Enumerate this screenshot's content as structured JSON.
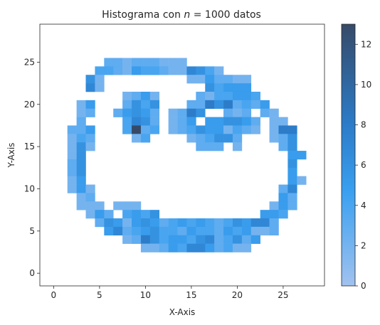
{
  "chart_data": {
    "type": "heatmap",
    "title": "Histograma con n = 1000 datos",
    "title_prefix": "Histograma con ",
    "title_var": "n",
    "title_suffix": " = 1000 datos",
    "xlabel": "X-Axis",
    "ylabel": "Y-Axis",
    "xlim": [
      -1.5,
      29.5
    ],
    "ylim": [
      -1.5,
      29.5
    ],
    "xticks": [
      0,
      5,
      10,
      15,
      20,
      25
    ],
    "yticks": [
      0,
      5,
      10,
      15,
      20,
      25
    ],
    "bin_width": 1,
    "colorbar": {
      "min": 0,
      "max": 13,
      "ticks": [
        0,
        2,
        4,
        6,
        8,
        10,
        12
      ]
    },
    "colors": {
      "low": "#a1c2ef",
      "mid": "#3aa0f0",
      "high": "#2c7bc8",
      "max": "#364a68"
    },
    "cells": [
      [
        6,
        25,
        3
      ],
      [
        7,
        25,
        3
      ],
      [
        8,
        25,
        2
      ],
      [
        9,
        25,
        3
      ],
      [
        10,
        25,
        3
      ],
      [
        11,
        25,
        3
      ],
      [
        12,
        25,
        2
      ],
      [
        13,
        25,
        2
      ],
      [
        14,
        25,
        2
      ],
      [
        5,
        24,
        4
      ],
      [
        6,
        24,
        4
      ],
      [
        7,
        24,
        3
      ],
      [
        8,
        24,
        2
      ],
      [
        9,
        24,
        5
      ],
      [
        10,
        24,
        4
      ],
      [
        11,
        24,
        4
      ],
      [
        12,
        24,
        3
      ],
      [
        13,
        24,
        2
      ],
      [
        14,
        24,
        2
      ],
      [
        15,
        24,
        7
      ],
      [
        16,
        24,
        6
      ],
      [
        17,
        24,
        4
      ],
      [
        18,
        24,
        2
      ],
      [
        4,
        23,
        6
      ],
      [
        5,
        23,
        2
      ],
      [
        15,
        23,
        2
      ],
      [
        16,
        23,
        2
      ],
      [
        17,
        23,
        5
      ],
      [
        18,
        23,
        3
      ],
      [
        19,
        23,
        3
      ],
      [
        20,
        23,
        2
      ],
      [
        21,
        23,
        2
      ],
      [
        4,
        22,
        7
      ],
      [
        5,
        22,
        2
      ],
      [
        17,
        22,
        6
      ],
      [
        18,
        22,
        4
      ],
      [
        19,
        22,
        5
      ],
      [
        20,
        22,
        5
      ],
      [
        21,
        22,
        5
      ],
      [
        8,
        21,
        2
      ],
      [
        9,
        21,
        3
      ],
      [
        10,
        21,
        5
      ],
      [
        11,
        21,
        2
      ],
      [
        16,
        21,
        3
      ],
      [
        17,
        21,
        2
      ],
      [
        18,
        21,
        4
      ],
      [
        19,
        21,
        4
      ],
      [
        20,
        21,
        5
      ],
      [
        21,
        21,
        5
      ],
      [
        22,
        21,
        4
      ],
      [
        3,
        20,
        2
      ],
      [
        4,
        20,
        5
      ],
      [
        8,
        20,
        3
      ],
      [
        9,
        20,
        6
      ],
      [
        10,
        20,
        4
      ],
      [
        11,
        20,
        6
      ],
      [
        15,
        20,
        3
      ],
      [
        16,
        20,
        3
      ],
      [
        17,
        20,
        8
      ],
      [
        18,
        20,
        6
      ],
      [
        19,
        20,
        8
      ],
      [
        20,
        20,
        3
      ],
      [
        21,
        20,
        4
      ],
      [
        22,
        20,
        3
      ],
      [
        23,
        20,
        5
      ],
      [
        3,
        19,
        2
      ],
      [
        4,
        19,
        3
      ],
      [
        7,
        19,
        3
      ],
      [
        8,
        19,
        5
      ],
      [
        9,
        19,
        6
      ],
      [
        10,
        19,
        5
      ],
      [
        11,
        19,
        3
      ],
      [
        13,
        19,
        2
      ],
      [
        14,
        19,
        3
      ],
      [
        15,
        19,
        8
      ],
      [
        16,
        19,
        6
      ],
      [
        19,
        19,
        3
      ],
      [
        20,
        19,
        2
      ],
      [
        21,
        19,
        3
      ],
      [
        23,
        19,
        3
      ],
      [
        24,
        19,
        2
      ],
      [
        3,
        18,
        3
      ],
      [
        8,
        18,
        4
      ],
      [
        9,
        18,
        7
      ],
      [
        10,
        18,
        6
      ],
      [
        11,
        18,
        3
      ],
      [
        13,
        18,
        2
      ],
      [
        14,
        18,
        3
      ],
      [
        15,
        18,
        5
      ],
      [
        17,
        18,
        5
      ],
      [
        18,
        18,
        5
      ],
      [
        19,
        18,
        6
      ],
      [
        20,
        18,
        6
      ],
      [
        21,
        18,
        5
      ],
      [
        22,
        18,
        3
      ],
      [
        24,
        18,
        2
      ],
      [
        25,
        18,
        2
      ],
      [
        2,
        17,
        3
      ],
      [
        3,
        17,
        3
      ],
      [
        4,
        17,
        5
      ],
      [
        8,
        17,
        4
      ],
      [
        9,
        17,
        13
      ],
      [
        10,
        17,
        3
      ],
      [
        11,
        17,
        4
      ],
      [
        13,
        17,
        2
      ],
      [
        14,
        17,
        3
      ],
      [
        15,
        17,
        4
      ],
      [
        16,
        17,
        6
      ],
      [
        17,
        17,
        5
      ],
      [
        18,
        17,
        5
      ],
      [
        19,
        17,
        2
      ],
      [
        20,
        17,
        4
      ],
      [
        21,
        17,
        3
      ],
      [
        22,
        17,
        2
      ],
      [
        24,
        17,
        2
      ],
      [
        25,
        17,
        8
      ],
      [
        26,
        17,
        8
      ],
      [
        2,
        16,
        2
      ],
      [
        3,
        16,
        4
      ],
      [
        4,
        16,
        3
      ],
      [
        9,
        16,
        2
      ],
      [
        10,
        16,
        4
      ],
      [
        15,
        16,
        2
      ],
      [
        16,
        16,
        3
      ],
      [
        17,
        16,
        4
      ],
      [
        18,
        16,
        6
      ],
      [
        19,
        16,
        6
      ],
      [
        20,
        16,
        3
      ],
      [
        24,
        16,
        2
      ],
      [
        25,
        16,
        3
      ],
      [
        26,
        16,
        6
      ],
      [
        2,
        15,
        2
      ],
      [
        3,
        15,
        6
      ],
      [
        4,
        15,
        2
      ],
      [
        16,
        15,
        3
      ],
      [
        17,
        15,
        3
      ],
      [
        18,
        15,
        3
      ],
      [
        20,
        15,
        2
      ],
      [
        25,
        15,
        3
      ],
      [
        26,
        15,
        6
      ],
      [
        2,
        14,
        2
      ],
      [
        3,
        14,
        6
      ],
      [
        26,
        14,
        5
      ],
      [
        27,
        14,
        5
      ],
      [
        2,
        13,
        3
      ],
      [
        3,
        13,
        6
      ],
      [
        26,
        13,
        6
      ],
      [
        2,
        12,
        3
      ],
      [
        3,
        12,
        6
      ],
      [
        26,
        12,
        5
      ],
      [
        2,
        11,
        2
      ],
      [
        3,
        11,
        5
      ],
      [
        26,
        11,
        5
      ],
      [
        27,
        11,
        2
      ],
      [
        2,
        10,
        2
      ],
      [
        3,
        10,
        5
      ],
      [
        4,
        10,
        2
      ],
      [
        25,
        10,
        3
      ],
      [
        26,
        10,
        7
      ],
      [
        3,
        9,
        2
      ],
      [
        4,
        9,
        3
      ],
      [
        25,
        9,
        5
      ],
      [
        26,
        9,
        3
      ],
      [
        3,
        8,
        2
      ],
      [
        4,
        8,
        2
      ],
      [
        5,
        8,
        2
      ],
      [
        7,
        8,
        2
      ],
      [
        8,
        8,
        2
      ],
      [
        9,
        8,
        2
      ],
      [
        24,
        8,
        2
      ],
      [
        25,
        8,
        5
      ],
      [
        26,
        8,
        3
      ],
      [
        4,
        7,
        2
      ],
      [
        5,
        7,
        5
      ],
      [
        6,
        7,
        3
      ],
      [
        8,
        7,
        4
      ],
      [
        9,
        7,
        5
      ],
      [
        10,
        7,
        4
      ],
      [
        11,
        7,
        6
      ],
      [
        23,
        7,
        5
      ],
      [
        24,
        7,
        5
      ],
      [
        25,
        7,
        4
      ],
      [
        5,
        6,
        3
      ],
      [
        6,
        6,
        6
      ],
      [
        7,
        6,
        5
      ],
      [
        8,
        6,
        2
      ],
      [
        9,
        6,
        5
      ],
      [
        10,
        6,
        6
      ],
      [
        11,
        6,
        5
      ],
      [
        12,
        6,
        3
      ],
      [
        13,
        6,
        4
      ],
      [
        14,
        6,
        5
      ],
      [
        15,
        6,
        4
      ],
      [
        16,
        6,
        5
      ],
      [
        17,
        6,
        4
      ],
      [
        18,
        6,
        3
      ],
      [
        19,
        6,
        4
      ],
      [
        20,
        6,
        6
      ],
      [
        21,
        6,
        5
      ],
      [
        22,
        6,
        7
      ],
      [
        23,
        6,
        7
      ],
      [
        24,
        6,
        3
      ],
      [
        6,
        5,
        5
      ],
      [
        7,
        5,
        7
      ],
      [
        8,
        5,
        3
      ],
      [
        9,
        5,
        4
      ],
      [
        10,
        5,
        5
      ],
      [
        11,
        5,
        6
      ],
      [
        12,
        5,
        4
      ],
      [
        13,
        5,
        4
      ],
      [
        14,
        5,
        3
      ],
      [
        15,
        5,
        5
      ],
      [
        16,
        5,
        4
      ],
      [
        17,
        5,
        4
      ],
      [
        18,
        5,
        3
      ],
      [
        19,
        5,
        5
      ],
      [
        20,
        5,
        4
      ],
      [
        21,
        5,
        5
      ],
      [
        22,
        5,
        2
      ],
      [
        23,
        5,
        2
      ],
      [
        24,
        5,
        3
      ],
      [
        8,
        4,
        2
      ],
      [
        9,
        4,
        3
      ],
      [
        10,
        4,
        8
      ],
      [
        11,
        4,
        6
      ],
      [
        12,
        4,
        4
      ],
      [
        13,
        4,
        5
      ],
      [
        14,
        4,
        5
      ],
      [
        15,
        4,
        4
      ],
      [
        16,
        4,
        6
      ],
      [
        17,
        4,
        7
      ],
      [
        18,
        4,
        3
      ],
      [
        19,
        4,
        4
      ],
      [
        20,
        4,
        6
      ],
      [
        21,
        4,
        3
      ],
      [
        22,
        4,
        5
      ],
      [
        10,
        3,
        2
      ],
      [
        11,
        3,
        2
      ],
      [
        12,
        3,
        3
      ],
      [
        13,
        3,
        5
      ],
      [
        14,
        3,
        4
      ],
      [
        15,
        3,
        7
      ],
      [
        16,
        3,
        7
      ],
      [
        17,
        3,
        5
      ],
      [
        18,
        3,
        3
      ],
      [
        19,
        3,
        4
      ],
      [
        20,
        3,
        2
      ],
      [
        21,
        3,
        2
      ]
    ]
  }
}
